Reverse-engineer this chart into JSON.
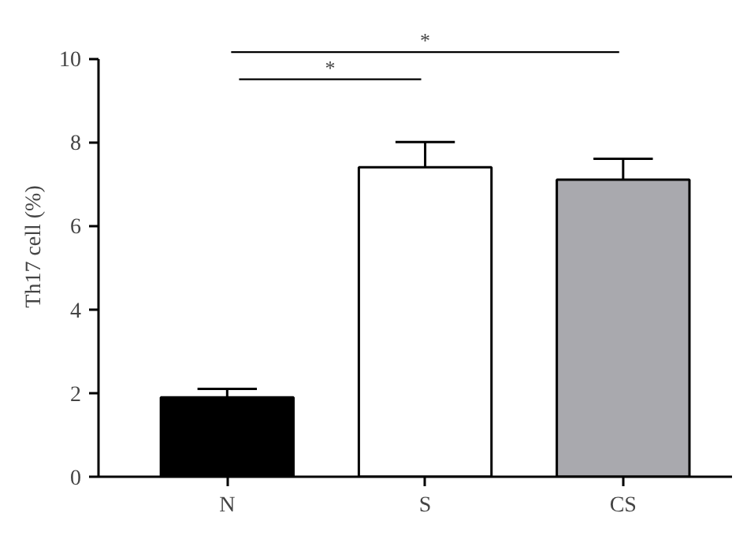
{
  "chart_data": {
    "type": "bar",
    "ylabel": "Th17 cell (%)",
    "categories": [
      "N",
      "S",
      "CS"
    ],
    "values": [
      1.9,
      7.4,
      7.1
    ],
    "errors": [
      [
        1.9,
        2.1
      ],
      [
        7.4,
        8.0
      ],
      [
        7.1,
        7.6
      ]
    ],
    "colors": [
      "#000000",
      "#ffffff",
      "#a9a9ae"
    ],
    "ylim": [
      0,
      10
    ],
    "yticks": [
      0,
      2,
      4,
      6,
      8,
      10
    ],
    "grid": false,
    "annotations": [
      "*",
      "*"
    ]
  }
}
